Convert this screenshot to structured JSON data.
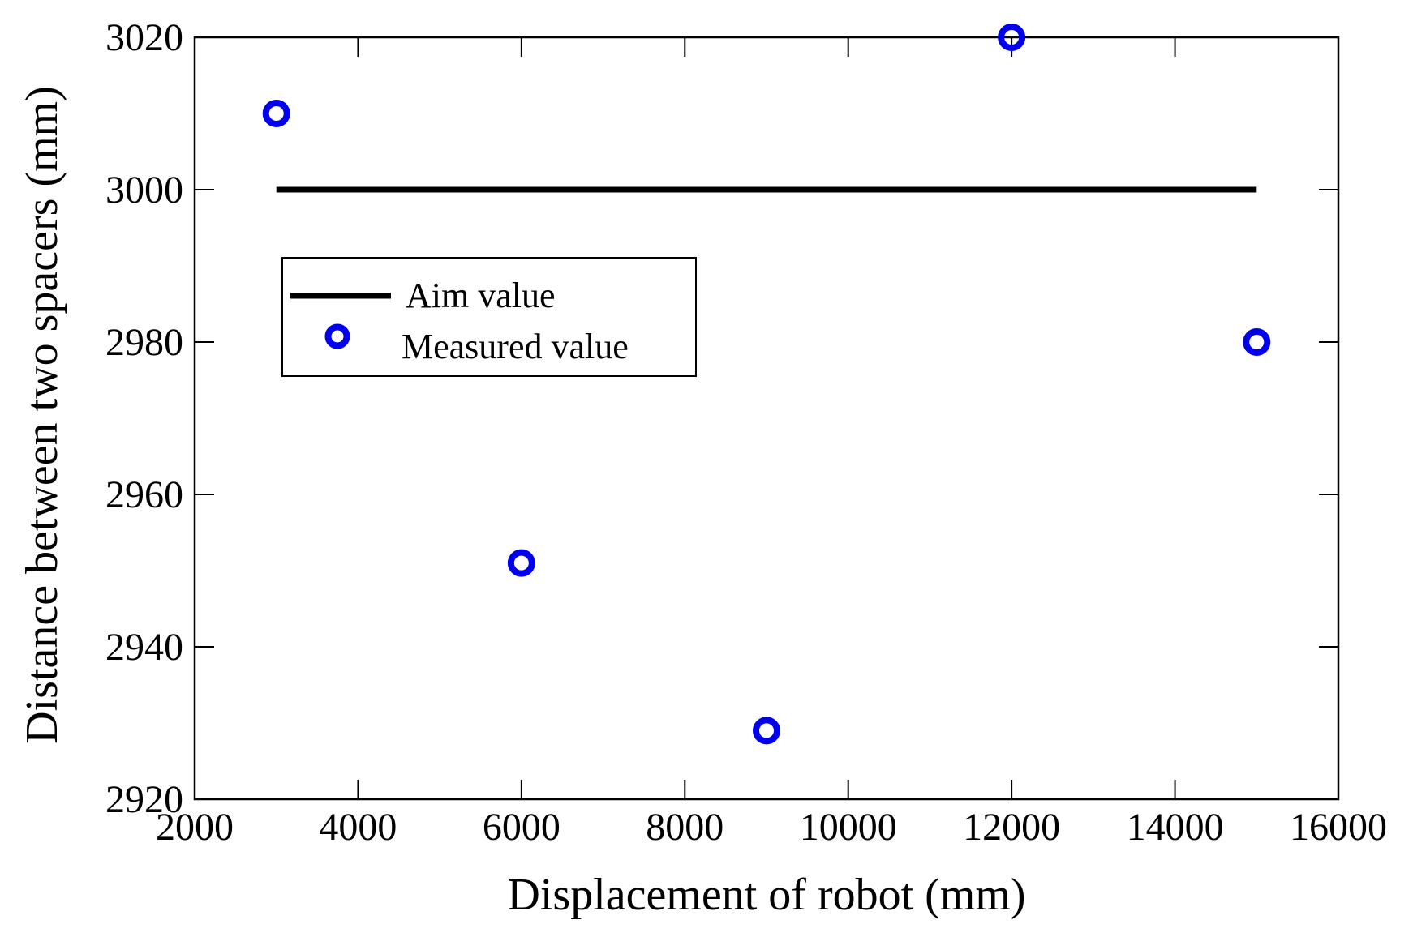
{
  "chart_data": {
    "type": "scatter",
    "title": "",
    "xlabel": "Displacement of robot (mm)",
    "ylabel": "Distance between two spacers (mm)",
    "xlim": [
      2000,
      16000
    ],
    "ylim": [
      2920,
      3020
    ],
    "xticks": [
      2000,
      4000,
      6000,
      8000,
      10000,
      12000,
      14000,
      16000
    ],
    "yticks": [
      2920,
      2940,
      2960,
      2980,
      3000,
      3020
    ],
    "grid": false,
    "legend_position": "upper-left",
    "series": [
      {
        "name": "Aim value",
        "kind": "line",
        "color": "#000000",
        "x": [
          3000,
          15000
        ],
        "y": [
          3000,
          3000
        ]
      },
      {
        "name": "Measured value",
        "kind": "scatter",
        "marker": "open-circle",
        "color": "#0000ee",
        "x": [
          3000,
          6000,
          9000,
          12000,
          15000
        ],
        "y": [
          3010,
          2951,
          2929,
          3020,
          2980
        ]
      }
    ]
  }
}
